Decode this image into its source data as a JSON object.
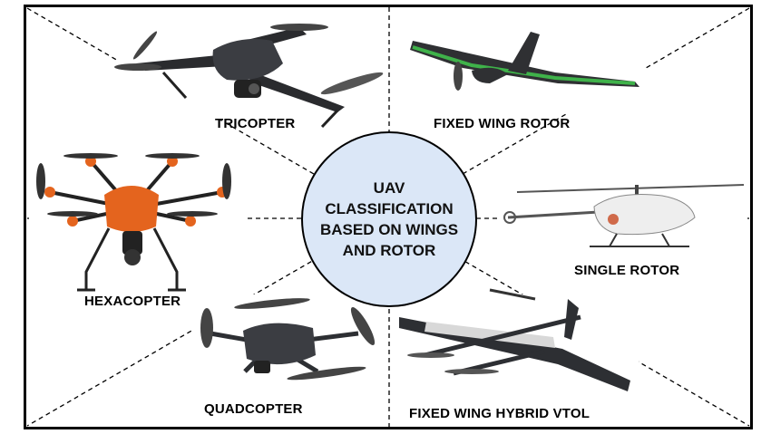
{
  "center": {
    "lines": [
      "UAV",
      "CLASSIFICATION",
      "BASED ON WINGS",
      "AND ROTOR"
    ],
    "fill": "#dbe7f7"
  },
  "labels": {
    "tricopter": "TRICOPTER",
    "fixed_wing_rotor": "FIXED WING ROTOR",
    "hexacopter": "HEXACOPTER",
    "single_rotor": "SINGLE ROTOR",
    "quadcopter": "QUADCOPTER",
    "fixed_wing_hybrid_vtol": "FIXED WING HYBRID VTOL"
  },
  "colors": {
    "hexacopter_body": "#e4641e",
    "fixed_wing_accent": "#3fb24a",
    "drone_dark": "#2d2f33",
    "helicopter_body": "#eeeeee"
  }
}
